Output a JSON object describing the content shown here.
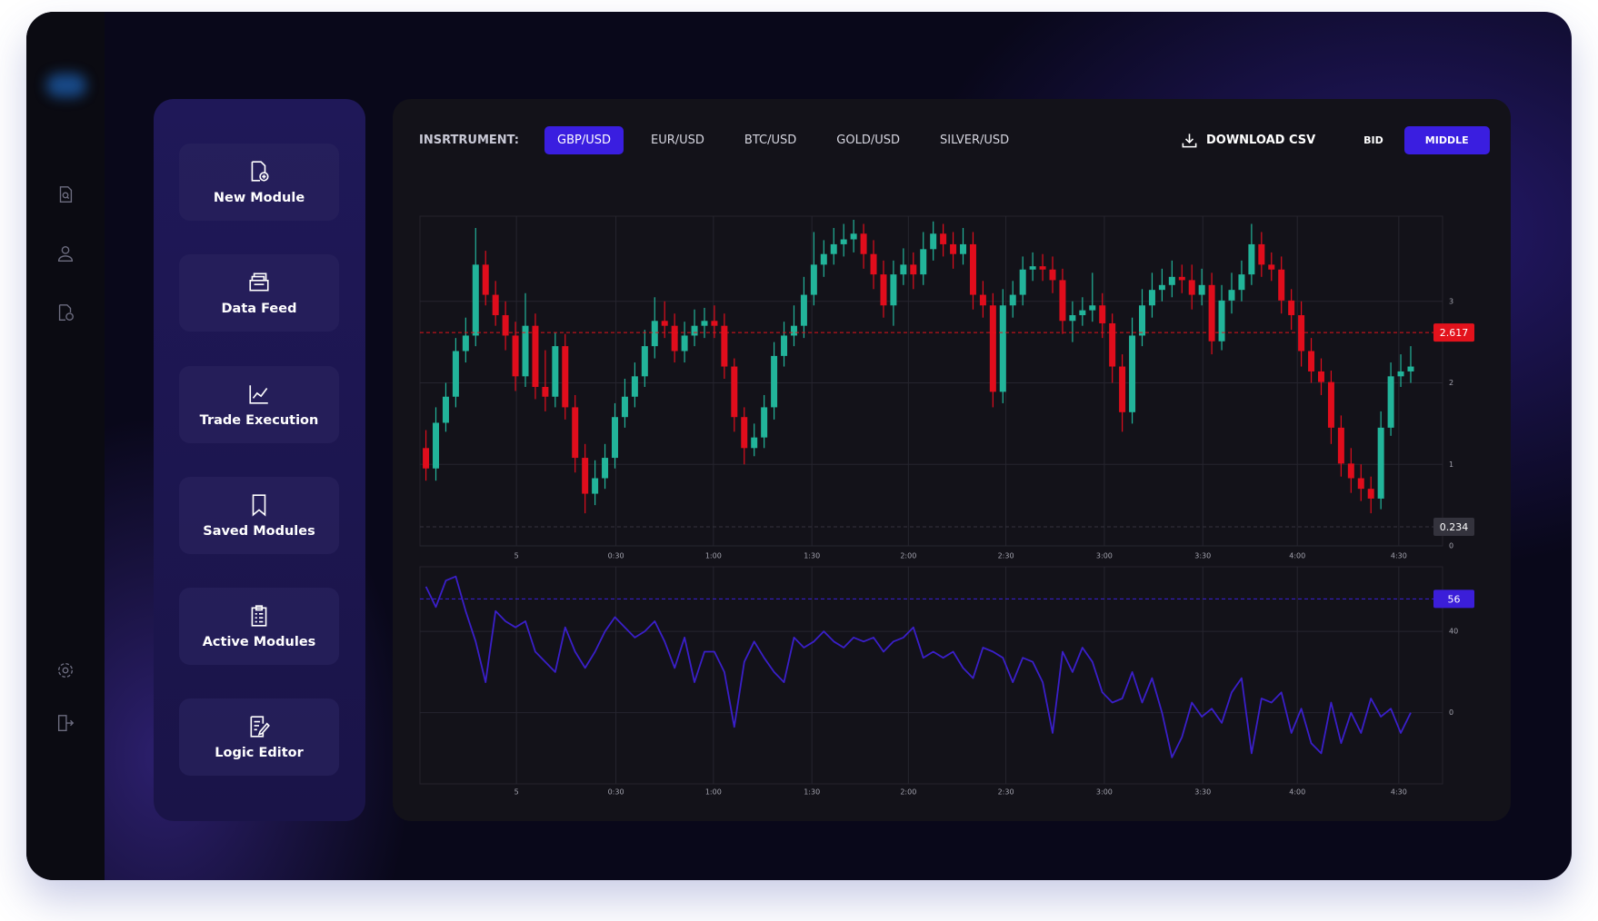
{
  "sidebar": {
    "buttons": [
      "New Module",
      "Data Feed",
      "Trade Execution",
      "Saved Modules",
      "Active Modules",
      "Logic Editor"
    ]
  },
  "toolbar": {
    "label": "INSRTRUMENT:",
    "instruments": [
      {
        "label": "GBP/USD",
        "selected": true
      },
      {
        "label": "EUR/USD",
        "selected": false
      },
      {
        "label": "BTC/USD",
        "selected": false
      },
      {
        "label": "GOLD/USD",
        "selected": false
      },
      {
        "label": "SILVER/USD",
        "selected": false
      }
    ],
    "download": "DOWNLOAD CSV",
    "modes": [
      {
        "label": "BID",
        "selected": false
      },
      {
        "label": "MIDDLE",
        "selected": true
      }
    ]
  },
  "chart_data": [
    {
      "type": "candlestick",
      "up_color": "#22b49a",
      "down_color": "#e00d1c",
      "grid": true,
      "xlim": [
        -0.6,
        102.2
      ],
      "ylim": [
        0,
        4
      ],
      "yticks": [
        0,
        1,
        2,
        3
      ],
      "xticks": [
        {
          "value": 9.1,
          "label": "5"
        },
        {
          "value": 19.1,
          "label": "0:30"
        },
        {
          "value": 28.9,
          "label": "1:00"
        },
        {
          "value": 38.8,
          "label": "1:30"
        },
        {
          "value": 48.5,
          "label": "2:00"
        },
        {
          "value": 58.3,
          "label": "2:30"
        },
        {
          "value": 68.2,
          "label": "3:00"
        },
        {
          "value": 78.1,
          "label": "3:30"
        },
        {
          "value": 87.6,
          "label": "4:00"
        },
        {
          "value": 97.8,
          "label": "4:30"
        }
      ],
      "open": [
        1.2,
        0.95,
        1.51,
        1.83,
        2.39,
        2.58,
        3.45,
        3.08,
        2.83,
        2.58,
        2.08,
        2.7,
        1.95,
        1.83,
        2.45,
        1.7,
        1.08,
        0.64,
        0.83,
        1.08,
        1.58,
        1.83,
        2.08,
        2.45,
        2.76,
        2.7,
        2.39,
        2.58,
        2.7,
        2.76,
        2.7,
        2.2,
        1.58,
        1.2,
        1.33,
        1.7,
        2.33,
        2.58,
        2.7,
        3.08,
        3.45,
        3.58,
        3.7,
        3.76,
        3.83,
        3.58,
        3.33,
        2.95,
        3.33,
        3.45,
        3.33,
        3.64,
        3.83,
        3.7,
        3.58,
        3.7,
        3.08,
        2.95,
        1.89,
        2.95,
        3.08,
        3.39,
        3.43,
        3.39,
        3.26,
        2.76,
        2.83,
        2.89,
        2.95,
        2.73,
        2.2,
        1.64,
        2.58,
        2.95,
        3.14,
        3.2,
        3.3,
        3.26,
        3.08,
        3.2,
        2.51,
        3.01,
        3.14,
        3.33,
        3.7,
        3.45,
        3.39,
        3.01,
        2.83,
        2.39,
        2.14,
        2.01,
        1.45,
        1.01,
        0.83,
        0.7,
        0.58,
        1.45,
        2.08,
        2.14
      ],
      "high": [
        1.42,
        1.7,
        2.0,
        2.55,
        2.8,
        3.9,
        3.62,
        3.25,
        3.0,
        2.75,
        3.1,
        2.85,
        2.4,
        2.62,
        2.6,
        1.85,
        1.25,
        1.05,
        1.25,
        1.75,
        2.05,
        2.25,
        2.65,
        3.05,
        3.0,
        2.85,
        2.75,
        2.9,
        2.92,
        2.95,
        2.85,
        2.3,
        1.7,
        1.5,
        1.85,
        2.5,
        2.75,
        2.95,
        3.3,
        3.85,
        3.75,
        3.9,
        3.95,
        4.0,
        3.95,
        3.75,
        3.5,
        3.5,
        3.65,
        3.6,
        3.85,
        3.98,
        3.95,
        3.85,
        3.9,
        3.85,
        3.25,
        3.1,
        3.15,
        3.25,
        3.55,
        3.6,
        3.58,
        3.55,
        3.4,
        3.0,
        3.05,
        3.35,
        3.1,
        2.85,
        2.35,
        2.8,
        3.15,
        3.35,
        3.4,
        3.5,
        3.45,
        3.45,
        3.4,
        3.35,
        3.2,
        3.35,
        3.5,
        3.95,
        3.85,
        3.6,
        3.55,
        3.15,
        3.0,
        2.55,
        2.3,
        2.15,
        1.6,
        1.2,
        1.0,
        0.85,
        1.65,
        2.25,
        2.35,
        2.45
      ],
      "low": [
        0.8,
        0.8,
        1.4,
        1.7,
        2.25,
        2.45,
        2.95,
        2.7,
        2.4,
        1.9,
        1.95,
        1.8,
        1.65,
        1.7,
        1.55,
        0.9,
        0.4,
        0.5,
        0.7,
        0.95,
        1.45,
        1.7,
        1.95,
        2.3,
        2.55,
        2.25,
        2.25,
        2.45,
        2.55,
        2.55,
        2.05,
        1.4,
        1.0,
        1.1,
        1.2,
        1.55,
        2.2,
        2.45,
        2.55,
        2.95,
        3.3,
        3.45,
        3.55,
        3.6,
        3.4,
        3.15,
        2.8,
        2.7,
        3.2,
        3.15,
        3.2,
        3.5,
        3.55,
        3.4,
        3.45,
        2.9,
        2.8,
        1.7,
        1.75,
        2.8,
        2.95,
        3.25,
        3.25,
        3.1,
        2.6,
        2.5,
        2.7,
        2.75,
        2.55,
        2.0,
        1.4,
        1.5,
        2.45,
        2.8,
        3.0,
        3.05,
        3.1,
        2.9,
        2.95,
        2.35,
        2.4,
        2.85,
        3.0,
        3.2,
        3.3,
        3.25,
        2.85,
        2.65,
        2.2,
        2.0,
        1.85,
        1.25,
        0.85,
        0.65,
        0.55,
        0.4,
        0.45,
        1.35,
        1.95,
        2.0
      ],
      "close": [
        0.95,
        1.51,
        1.83,
        2.39,
        2.58,
        3.45,
        3.08,
        2.83,
        2.58,
        2.08,
        2.7,
        1.95,
        1.83,
        2.45,
        1.7,
        1.08,
        0.64,
        0.83,
        1.08,
        1.58,
        1.83,
        2.08,
        2.45,
        2.76,
        2.7,
        2.39,
        2.58,
        2.7,
        2.76,
        2.7,
        2.2,
        1.58,
        1.2,
        1.33,
        1.7,
        2.33,
        2.58,
        2.7,
        3.08,
        3.45,
        3.58,
        3.7,
        3.76,
        3.83,
        3.58,
        3.33,
        2.95,
        3.33,
        3.45,
        3.33,
        3.64,
        3.83,
        3.7,
        3.58,
        3.7,
        3.08,
        2.95,
        1.89,
        2.95,
        3.08,
        3.39,
        3.43,
        3.39,
        3.26,
        2.76,
        2.83,
        2.89,
        2.95,
        2.73,
        2.2,
        1.64,
        2.58,
        2.95,
        3.14,
        3.2,
        3.3,
        3.26,
        3.08,
        3.2,
        2.51,
        3.01,
        3.14,
        3.33,
        3.7,
        3.45,
        3.39,
        3.01,
        2.83,
        2.39,
        2.14,
        2.01,
        1.45,
        1.01,
        0.83,
        0.7,
        0.58,
        1.45,
        2.08,
        2.14,
        2.2
      ],
      "price_lines": [
        {
          "value": 2.617,
          "color": "#e3121c"
        },
        {
          "value": 0.234,
          "color": "#34333d"
        }
      ]
    },
    {
      "type": "line",
      "color": "#3a1fc9",
      "grid": true,
      "xlim": [
        -0.6,
        102.2
      ],
      "ylim": [
        -35,
        70
      ],
      "yticks": [
        0,
        40
      ],
      "xticks": [
        {
          "value": 9.1,
          "label": "5"
        },
        {
          "value": 19.1,
          "label": "0:30"
        },
        {
          "value": 28.9,
          "label": "1:00"
        },
        {
          "value": 38.8,
          "label": "1:30"
        },
        {
          "value": 48.5,
          "label": "2:00"
        },
        {
          "value": 58.3,
          "label": "2:30"
        },
        {
          "value": 68.2,
          "label": "3:00"
        },
        {
          "value": 78.1,
          "label": "3:30"
        },
        {
          "value": 87.6,
          "label": "4:00"
        },
        {
          "value": 97.8,
          "label": "4:30"
        }
      ],
      "values": [
        62,
        52,
        65,
        67,
        50,
        35,
        15,
        50,
        45,
        42,
        45,
        30,
        25,
        20,
        42,
        30,
        22,
        30,
        40,
        47,
        42,
        37,
        40,
        45,
        35,
        22,
        37,
        15,
        30,
        30,
        20,
        -7,
        25,
        35,
        27,
        20,
        15,
        37,
        32,
        35,
        40,
        35,
        32,
        37,
        35,
        37,
        30,
        35,
        37,
        42,
        27,
        30,
        27,
        30,
        22,
        17,
        32,
        30,
        27,
        15,
        27,
        25,
        15,
        -10,
        30,
        20,
        32,
        25,
        10,
        5,
        7,
        20,
        5,
        17,
        0,
        -22,
        -12,
        5,
        -2,
        2,
        -5,
        10,
        17,
        -20,
        7,
        5,
        10,
        -10,
        2,
        -15,
        -20,
        5,
        -15,
        0,
        -10,
        7,
        -2,
        2,
        -10,
        0
      ],
      "price_lines": [
        {
          "value": 56,
          "color": "#3b1ed9"
        }
      ]
    }
  ]
}
